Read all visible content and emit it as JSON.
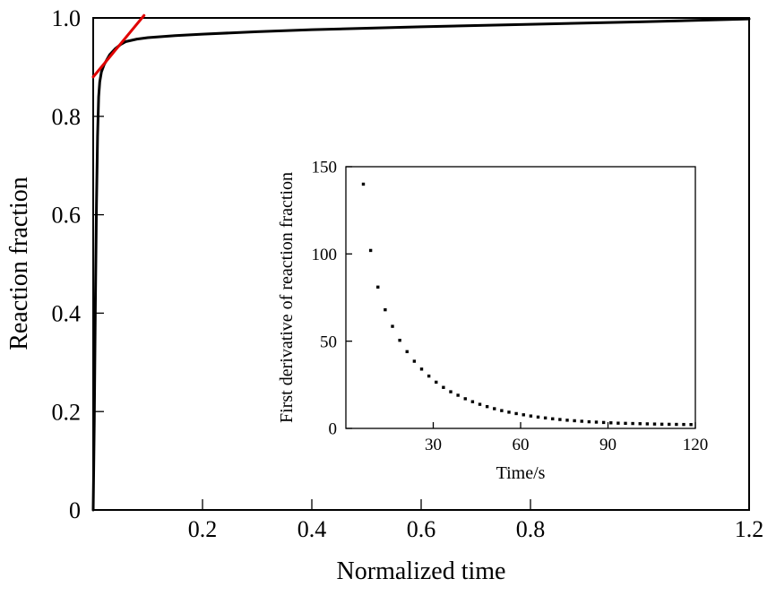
{
  "chart_data": [
    {
      "id": "main",
      "type": "line",
      "xlabel": "Normalized time",
      "ylabel": "Reaction fraction",
      "xlim": [
        0,
        1.2
      ],
      "ylim": [
        0,
        1.0
      ],
      "x_ticks": [
        0.2,
        0.4,
        0.6,
        0.8,
        1.2
      ],
      "x_tick_labels": [
        "0.2",
        "0.4",
        "0.6",
        "0.8",
        "1.2"
      ],
      "y_ticks": [
        0,
        0.2,
        0.4,
        0.6,
        0.8,
        1.0
      ],
      "y_tick_labels": [
        "0",
        "0.2",
        "0.4",
        "0.6",
        "0.8",
        "1.0"
      ],
      "grid": false,
      "series": [
        {
          "color": "#000000",
          "x": [
            0,
            0.002,
            0.004,
            0.006,
            0.008,
            0.01,
            0.012,
            0.015,
            0.02,
            0.025,
            0.03,
            0.04,
            0.05,
            0.06,
            0.08,
            0.1,
            0.15,
            0.2,
            0.3,
            0.4,
            0.5,
            0.6,
            0.8,
            1.0,
            1.1,
            1.2
          ],
          "y": [
            0,
            0.18,
            0.42,
            0.62,
            0.76,
            0.84,
            0.87,
            0.89,
            0.905,
            0.915,
            0.925,
            0.937,
            0.946,
            0.952,
            0.957,
            0.96,
            0.964,
            0.967,
            0.972,
            0.976,
            0.979,
            0.982,
            0.987,
            0.992,
            0.995,
            0.998
          ]
        },
        {
          "color": "#e00000",
          "x": [
            0,
            0.093
          ],
          "y": [
            0.88,
            1.005
          ]
        }
      ]
    },
    {
      "id": "inset",
      "type": "scatter",
      "xlabel": "Time/s",
      "ylabel": "First derivative of reaction fraction",
      "xlim": [
        0,
        120
      ],
      "ylim": [
        0,
        150
      ],
      "x_ticks": [
        30,
        60,
        90,
        120
      ],
      "x_tick_labels": [
        "30",
        "60",
        "90",
        "120"
      ],
      "y_ticks": [
        0,
        50,
        100,
        150
      ],
      "y_tick_labels": [
        "0",
        "50",
        "100",
        "150"
      ],
      "grid": false,
      "series": [
        {
          "color": "#000000",
          "x": [
            6,
            8.5,
            11,
            13.5,
            16,
            18.5,
            21,
            23.5,
            26,
            28.5,
            31,
            33.5,
            36,
            38.5,
            41,
            43.5,
            46,
            48.5,
            51,
            53.5,
            56,
            58.5,
            61,
            63.5,
            66,
            68.5,
            71,
            73.5,
            76,
            78.5,
            81,
            83.5,
            86,
            88.5,
            91,
            93.5,
            96,
            98.5,
            101,
            103.5,
            106,
            108.5,
            111,
            113.5,
            116,
            118.5
          ],
          "y": [
            140,
            102,
            81,
            68,
            58.5,
            50.5,
            44,
            38.5,
            34,
            30,
            26.5,
            23.5,
            21,
            19,
            17,
            15.3,
            13.8,
            12.5,
            11.3,
            10.2,
            9.3,
            8.5,
            7.8,
            7.1,
            6.5,
            6,
            5.5,
            5.1,
            4.7,
            4.4,
            4.1,
            3.8,
            3.6,
            3.4,
            3.2,
            3,
            2.9,
            2.8,
            2.7,
            2.6,
            2.5,
            2.4,
            2.35,
            2.3,
            2.25,
            2.2
          ]
        }
      ]
    }
  ]
}
